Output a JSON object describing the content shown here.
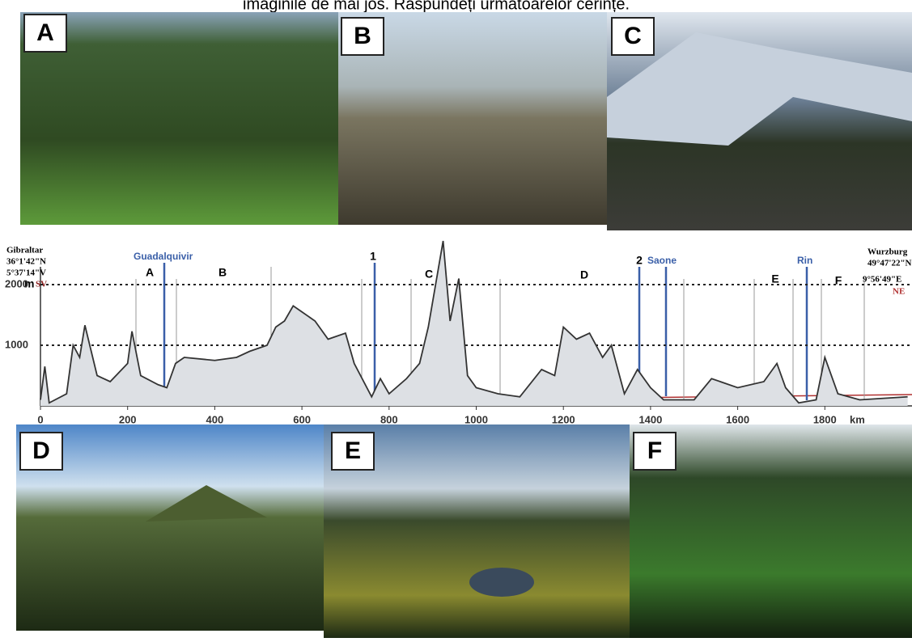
{
  "header": {
    "text": "imaginile de mai jos. Răspundeți următoarelor cerințe."
  },
  "photos": [
    {
      "label": "A"
    },
    {
      "label": "B"
    },
    {
      "label": "C"
    },
    {
      "label": "D"
    },
    {
      "label": "E"
    },
    {
      "label": "F"
    }
  ],
  "profile": {
    "start": {
      "place": "Gibraltar",
      "lat": "36°1'42\"N",
      "lon": "5°37'14\"V",
      "dir": "SV"
    },
    "end": {
      "place": "Wurzburg",
      "lat": "49°47'22\"N",
      "lon": "9°56'49\"E",
      "dir": "NE"
    },
    "y_unit": "m",
    "x_unit": "km",
    "rivers": [
      "Guadalquivir",
      "Saone",
      "Rin"
    ],
    "sections": [
      "A",
      "B",
      "1",
      "C",
      "D",
      "2",
      "E",
      "F"
    ],
    "xlim": [
      0,
      2000
    ],
    "ylim": [
      0,
      2900
    ],
    "xticks": [
      0,
      200,
      400,
      600,
      800,
      1000,
      1200,
      1400,
      1600,
      1800
    ],
    "yticks": [
      1000,
      2000
    ],
    "x": [
      0,
      10,
      20,
      60,
      75,
      90,
      102,
      130,
      160,
      200,
      210,
      230,
      270,
      290,
      310,
      330,
      400,
      450,
      480,
      520,
      540,
      560,
      580,
      600,
      630,
      660,
      700,
      720,
      760,
      780,
      800,
      840,
      870,
      890,
      924,
      940,
      960,
      980,
      1000,
      1050,
      1100,
      1150,
      1180,
      1200,
      1230,
      1260,
      1290,
      1310,
      1340,
      1370,
      1400,
      1430,
      1500,
      1540,
      1600,
      1660,
      1690,
      1710,
      1740,
      1780,
      1800,
      1830,
      1880,
      1990
    ],
    "elevation": [
      100,
      650,
      50,
      200,
      1000,
      800,
      1330,
      500,
      400,
      700,
      1230,
      500,
      350,
      300,
      700,
      800,
      750,
      800,
      900,
      1000,
      1300,
      1400,
      1650,
      1550,
      1400,
      1100,
      1200,
      700,
      150,
      450,
      200,
      450,
      700,
      1300,
      2720,
      1400,
      2100,
      500,
      300,
      200,
      150,
      600,
      500,
      1300,
      1100,
      1200,
      800,
      1000,
      200,
      600,
      300,
      100,
      100,
      450,
      300,
      400,
      700,
      300,
      50,
      100,
      800,
      200,
      100,
      150
    ]
  }
}
